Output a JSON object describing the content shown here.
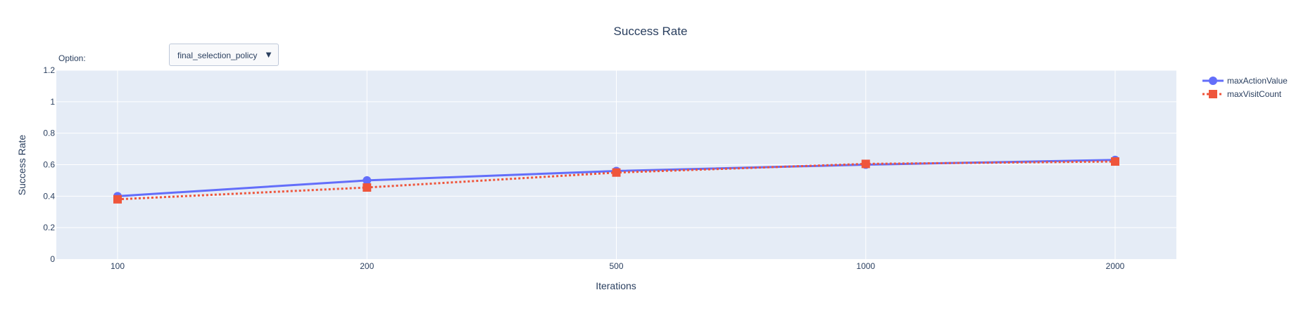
{
  "dropdown": {
    "label": "Option:",
    "selected": "final_selection_policy",
    "arrow_glyph": "▼"
  },
  "chart_data": {
    "type": "line",
    "title": "Success Rate",
    "xlabel": "Iterations",
    "ylabel": "Success Rate",
    "categories": [
      "100",
      "200",
      "500",
      "1000",
      "2000"
    ],
    "ylim": [
      0,
      1.2
    ],
    "yticks": [
      0,
      0.2,
      0.4,
      0.6,
      0.8,
      1,
      1.2
    ],
    "grid": true,
    "legend_position": "top-right",
    "plot_background": "#e5ecf6",
    "series": [
      {
        "name": "maxActionValue",
        "values": [
          0.4,
          0.5,
          0.56,
          0.6,
          0.63
        ],
        "color": "#636efa",
        "marker": "circle",
        "dash": "solid"
      },
      {
        "name": "maxVisitCount",
        "values": [
          0.38,
          0.455,
          0.55,
          0.605,
          0.62
        ],
        "color": "#ef553b",
        "marker": "square",
        "dash": "dot"
      }
    ]
  }
}
